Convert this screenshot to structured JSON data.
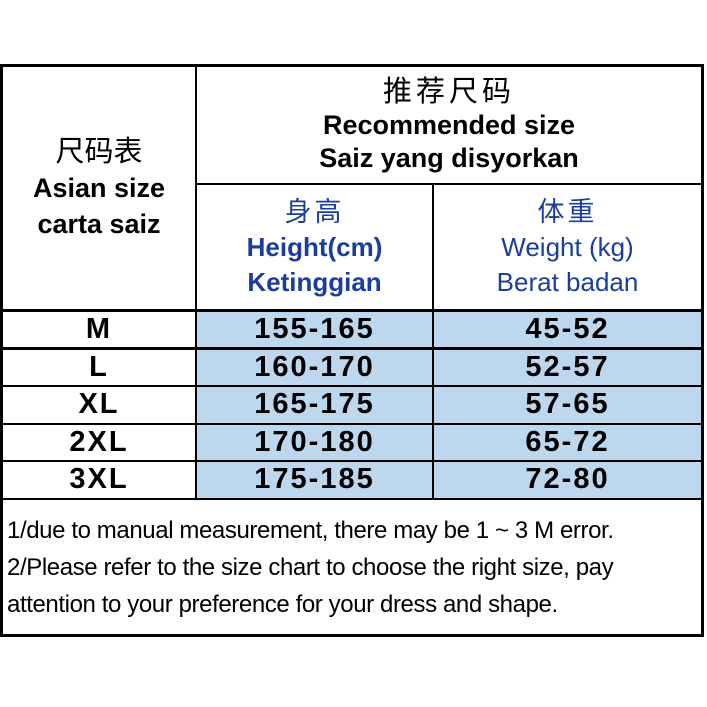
{
  "colors": {
    "cell_blue": "#BDD7EE",
    "text_blue": "#1B3D9E",
    "border_color": "#000000",
    "text_black": "#000000",
    "bg": "#FFFFFF"
  },
  "table": {
    "corner": {
      "zh": "尺码表",
      "en": "Asian size",
      "ms": "carta saiz"
    },
    "header": {
      "zh": "推荐尺码",
      "en": "Recommended size",
      "ms": "Saiz yang disyorkan"
    },
    "columns": {
      "height": {
        "zh": "身高",
        "en": "Height(cm)",
        "ms": "Ketinggian"
      },
      "weight": {
        "zh": "体重",
        "en": "Weight (kg)",
        "ms": "Berat badan"
      }
    },
    "rows": [
      {
        "size": "M",
        "height": "155-165",
        "weight": "45-52"
      },
      {
        "size": "L",
        "height": "160-170",
        "weight": "52-57"
      },
      {
        "size": "XL",
        "height": "165-175",
        "weight": "57-65"
      },
      {
        "size": "2XL",
        "height": "170-180",
        "weight": "65-72"
      },
      {
        "size": "3XL",
        "height": "175-185",
        "weight": "72-80"
      }
    ],
    "notes_lines": [
      "1/due to manual measurement, there may be 1 ~ 3 M error.",
      "2/Please refer to the size chart to choose the right size, pay",
      "attention to your preference for your dress and shape."
    ]
  }
}
